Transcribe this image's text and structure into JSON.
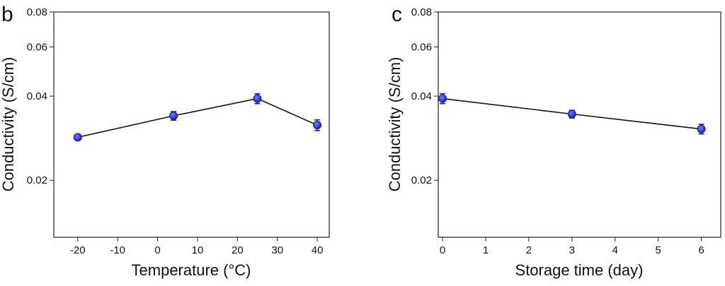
{
  "chart_data": [
    {
      "panel": "b",
      "type": "line",
      "title": "",
      "xlabel": "Temperature (°C)",
      "ylabel": "Conductivity (S/cm)",
      "y_scale": "log",
      "xlim": [
        -26,
        43
      ],
      "ylim": [
        0.0125,
        0.08
      ],
      "x_ticks": [
        -20,
        -10,
        0,
        10,
        20,
        30,
        40
      ],
      "x_tick_labels": [
        "-20",
        "-10",
        "0",
        "10",
        "20",
        "30",
        "40"
      ],
      "y_ticks": [
        0.02,
        0.04,
        0.06,
        0.08
      ],
      "y_tick_labels": [
        "0.02",
        "0.04",
        "0.06",
        "0.08"
      ],
      "grid": false,
      "series": [
        {
          "name": "Conductivity",
          "x": [
            -20,
            4,
            25,
            40
          ],
          "values": [
            0.0285,
            0.034,
            0.0392,
            0.0315
          ],
          "errors": [
            0.0007,
            0.0012,
            0.0016,
            0.0014
          ]
        }
      ]
    },
    {
      "panel": "c",
      "type": "line",
      "title": "",
      "xlabel": "Storage time (day)",
      "ylabel": "Conductivity (S/cm)",
      "y_scale": "log",
      "xlim": [
        -0.1,
        6.45
      ],
      "ylim": [
        0.0125,
        0.08
      ],
      "x_ticks": [
        0,
        1,
        2,
        3,
        4,
        5,
        6
      ],
      "x_tick_labels": [
        "0",
        "1",
        "2",
        "3",
        "4",
        "5",
        "6"
      ],
      "y_ticks": [
        0.02,
        0.04,
        0.06,
        0.08
      ],
      "y_tick_labels": [
        "0.02",
        "0.04",
        "0.06",
        "0.08"
      ],
      "grid": false,
      "series": [
        {
          "name": "Conductivity",
          "x": [
            0,
            3,
            6
          ],
          "values": [
            0.0392,
            0.0345,
            0.0305
          ],
          "errors": [
            0.0016,
            0.0011,
            0.0012
          ]
        }
      ]
    }
  ],
  "style": {
    "axis_color": "#222222",
    "marker_color": "#1a1aa6",
    "marker_highlight": "#6f7bff",
    "line_color": "#111111"
  }
}
